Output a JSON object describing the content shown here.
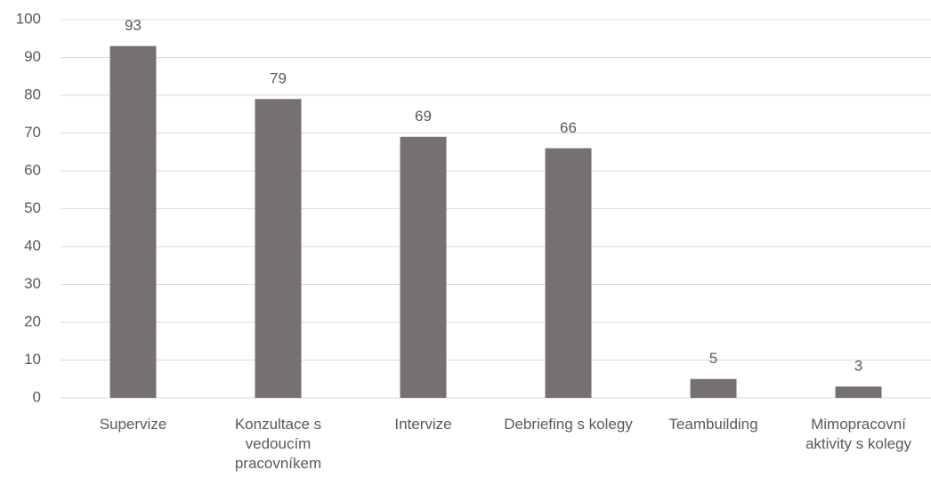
{
  "chart_data": {
    "type": "bar",
    "categories": [
      "Supervize",
      "Konzultace s vedoucím pracovníkem",
      "Intervize",
      "Debriefing s kolegy",
      "Teambuilding",
      "Mimopracovní aktivity s kolegy"
    ],
    "values": [
      93,
      79,
      69,
      66,
      5,
      3
    ],
    "color": "#767171",
    "ylim": [
      0,
      100
    ],
    "yticks": [
      0,
      10,
      20,
      30,
      40,
      50,
      60,
      70,
      80,
      90,
      100
    ],
    "grid": true
  }
}
